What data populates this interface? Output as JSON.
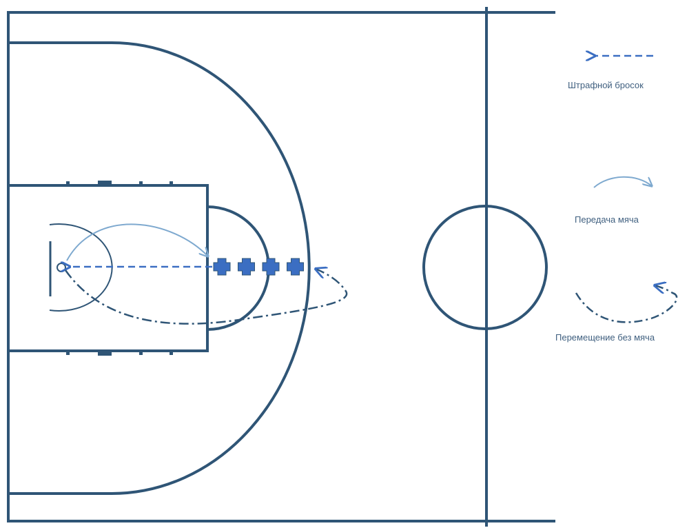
{
  "legend": {
    "free_throw": "Штрафной бросок",
    "pass": "Передача мяча",
    "move": "Перемещение без мяча"
  },
  "players_count": 4,
  "colors": {
    "court_line": "#2f5576",
    "player": "#3b6ec2",
    "free_throw_arrow": "#3b6ec2",
    "pass_arrow": "#7ea9cf",
    "move_line": "#2f5576"
  }
}
